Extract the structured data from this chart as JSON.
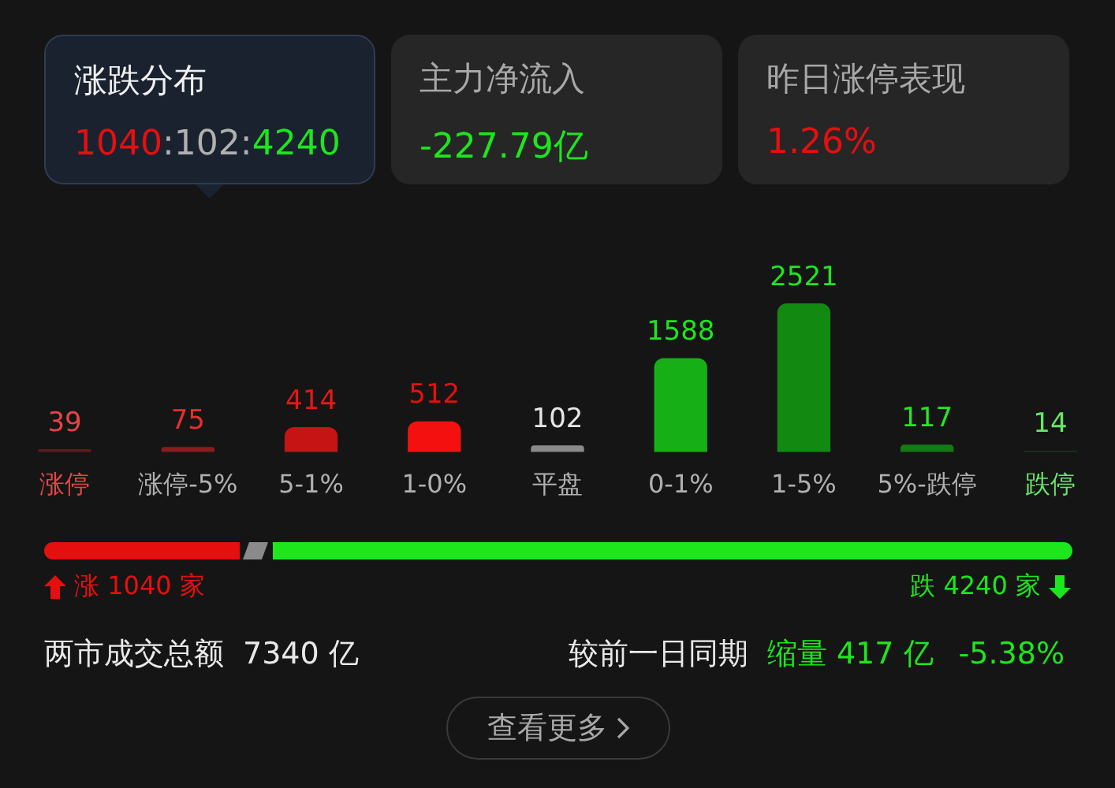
{
  "chart_data": {
    "type": "bar",
    "categories": [
      "涨停",
      "涨停-5%",
      "5-1%",
      "1-0%",
      "平盘",
      "0-1%",
      "1-5%",
      "5%-跌停",
      "跌停"
    ],
    "values": [
      39,
      75,
      414,
      512,
      102,
      1588,
      2521,
      117,
      14
    ],
    "colors": [
      "#5e1c1c",
      "#8a1c1c",
      "#c41414",
      "#f51010",
      "#8a8a8a",
      "#16b016",
      "#128a12",
      "#147a14",
      "#1a3a1a"
    ],
    "data_labels": true,
    "legend": false,
    "tick_labels": "x",
    "annotations": [
      "涨跌分布",
      "1040",
      ":102:",
      "4240",
      "主力净流入",
      "-227.79亿",
      "昨日涨停表现",
      "1.26%",
      "涨 1040 家",
      "跌 4240 家",
      "两市成交总额",
      "7340 亿",
      "较前一日同期",
      "缩量 417 亿",
      "-5.38%",
      "查看更多"
    ]
  }
}
